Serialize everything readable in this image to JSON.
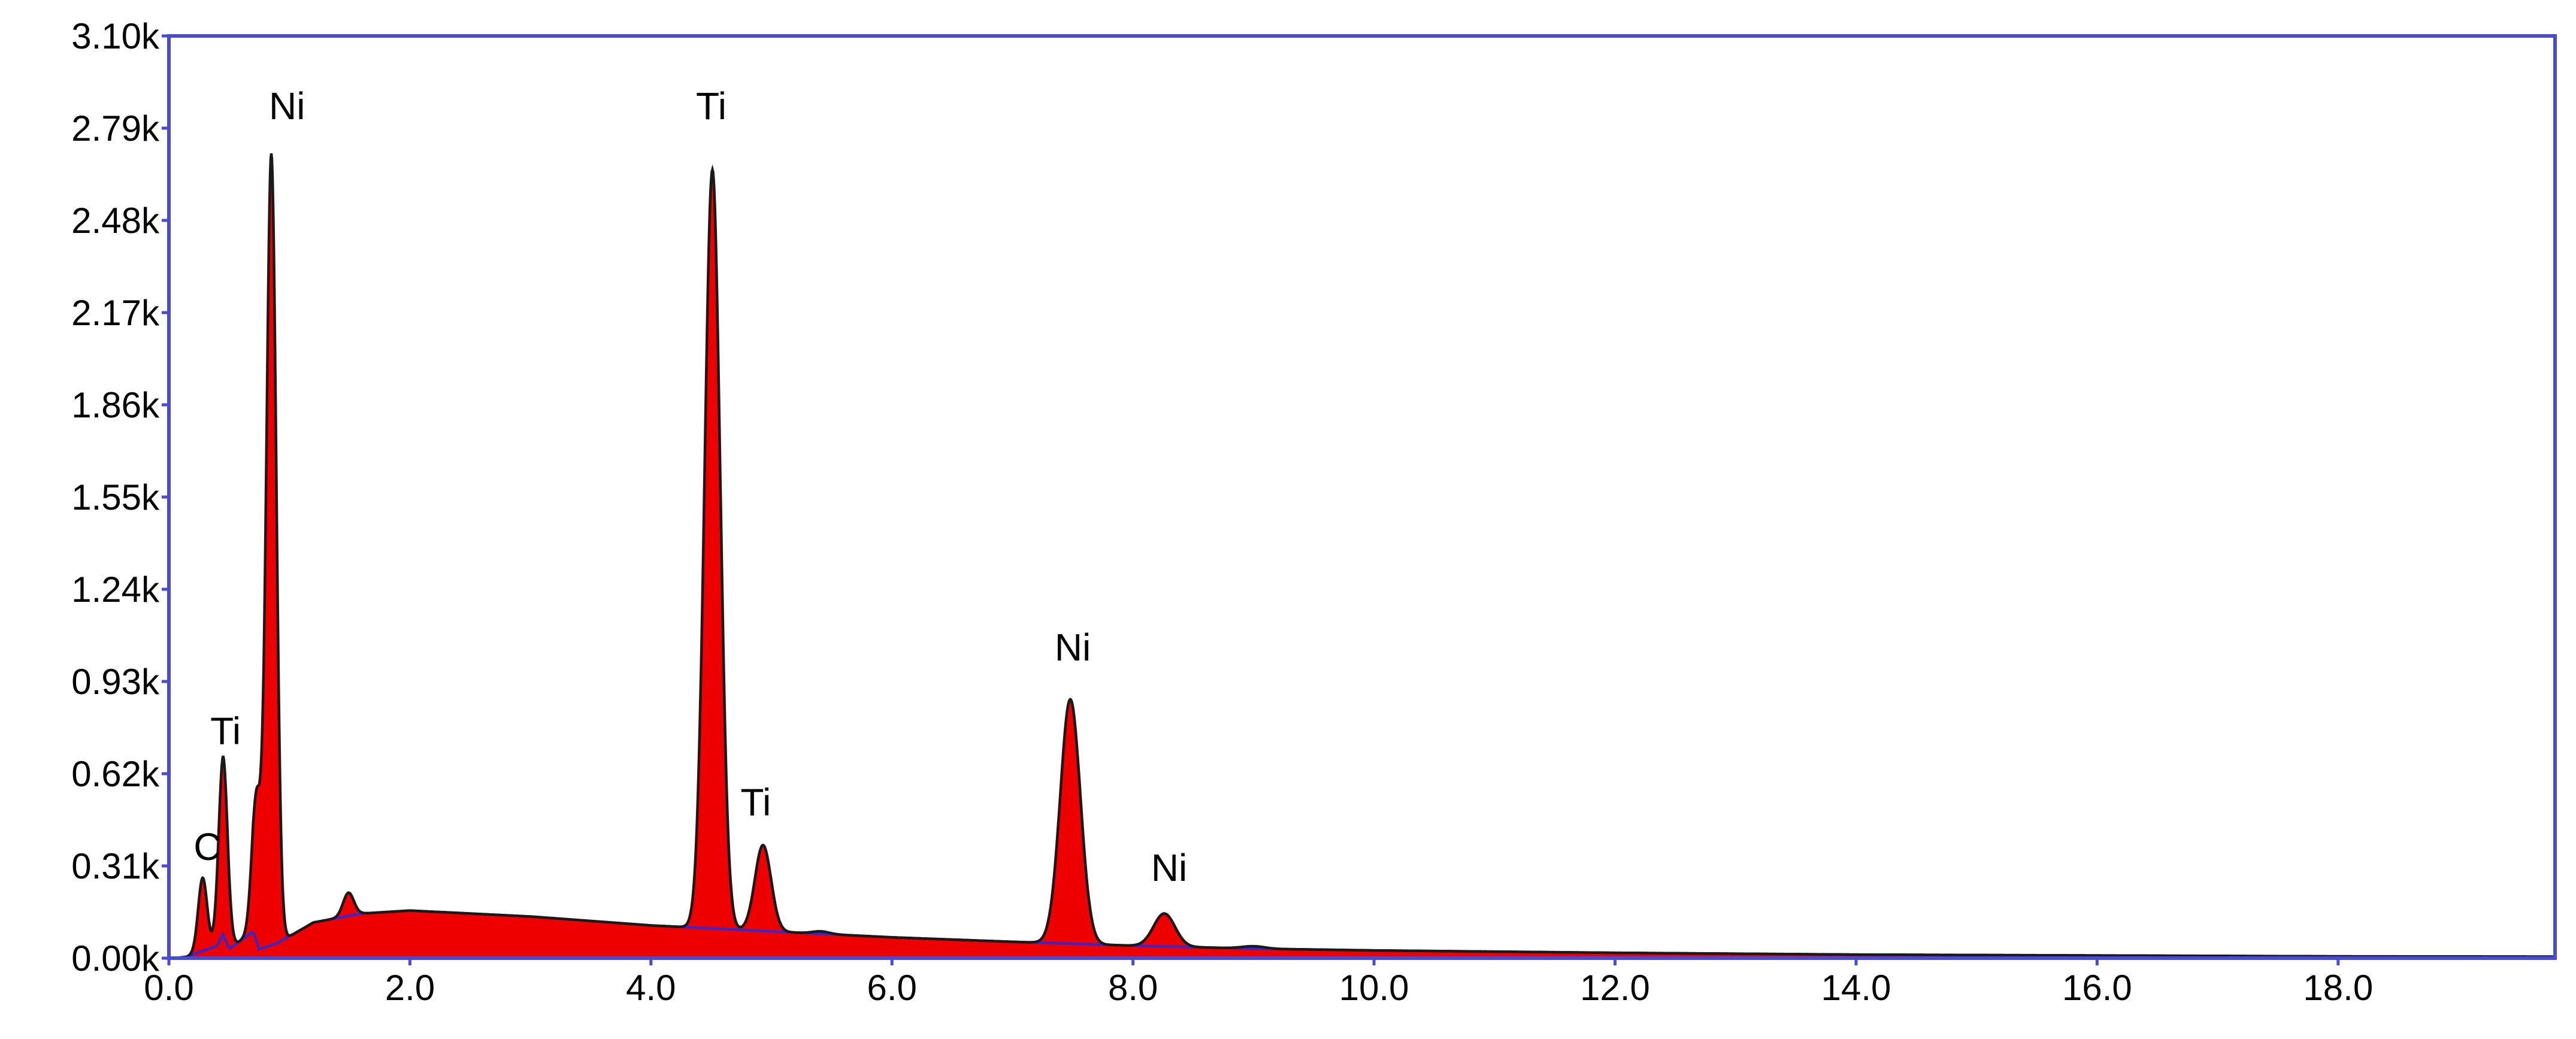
{
  "chart_data": {
    "type": "area",
    "title": "",
    "xlabel": "",
    "ylabel": "",
    "xlim": [
      0,
      19.8
    ],
    "ylim": [
      0,
      3100
    ],
    "x_ticks": [
      "0.0",
      "2.0",
      "4.0",
      "6.0",
      "8.0",
      "10.0",
      "12.0",
      "14.0",
      "16.0",
      "18.0"
    ],
    "x_tick_values": [
      0,
      2,
      4,
      6,
      8,
      10,
      12,
      14,
      16,
      18
    ],
    "y_ticks": [
      "0.00k",
      "0.31k",
      "0.62k",
      "0.93k",
      "1.24k",
      "1.55k",
      "1.86k",
      "2.17k",
      "2.48k",
      "2.79k",
      "3.10k"
    ],
    "y_tick_values": [
      0,
      310,
      620,
      930,
      1240,
      1550,
      1860,
      2170,
      2480,
      2790,
      3100
    ],
    "grid": false,
    "colors": {
      "spectrum_fill": "#ee0000",
      "spectrum_line": "#1a1a1a",
      "background_line": "#2b2bd6",
      "frame": "#4a4ad8"
    },
    "background_curve": {
      "x": [
        0.15,
        0.25,
        0.4,
        0.45,
        0.5,
        0.7,
        0.75,
        0.9,
        1.2,
        1.6,
        2.0,
        3.0,
        4.0,
        5.0,
        6.0,
        7.0,
        8.0,
        9.0,
        10.0,
        12.0,
        14.0,
        16.0,
        18.0,
        19.8
      ],
      "y": [
        5,
        20,
        40,
        80,
        30,
        90,
        30,
        50,
        120,
        150,
        160,
        140,
        110,
        90,
        70,
        55,
        42,
        32,
        26,
        18,
        12,
        9,
        6,
        5
      ]
    },
    "peaks": [
      {
        "label": "C",
        "x": 0.28,
        "y": 270
      },
      {
        "label": "Ti",
        "x": 0.45,
        "y": 680
      },
      {
        "label": "",
        "x": 0.73,
        "y": 540
      },
      {
        "label": "Ni",
        "x": 0.85,
        "y": 2700
      },
      {
        "label": "",
        "x": 1.49,
        "y": 220
      },
      {
        "label": "Ti",
        "x": 4.51,
        "y": 2650
      },
      {
        "label": "Ti",
        "x": 4.93,
        "y": 380
      },
      {
        "label": "",
        "x": 5.41,
        "y": 90
      },
      {
        "label": "Ni",
        "x": 7.48,
        "y": 870
      },
      {
        "label": "Ni",
        "x": 8.26,
        "y": 150
      },
      {
        "label": "",
        "x": 9.0,
        "y": 40
      }
    ],
    "peak_labels": [
      {
        "text": "C",
        "x": 0.32,
        "y": 330
      },
      {
        "text": "Ti",
        "x": 0.47,
        "y": 720
      },
      {
        "text": "Ni",
        "x": 0.98,
        "y": 2820
      },
      {
        "text": "Ti",
        "x": 4.5,
        "y": 2820
      },
      {
        "text": "Ti",
        "x": 4.87,
        "y": 480
      },
      {
        "text": "Ni",
        "x": 7.5,
        "y": 1000
      },
      {
        "text": "Ni",
        "x": 8.3,
        "y": 260
      }
    ]
  }
}
